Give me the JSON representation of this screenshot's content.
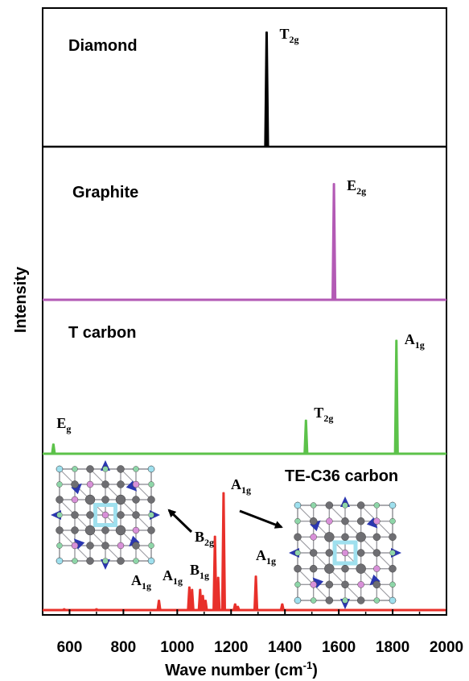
{
  "chart_data": {
    "type": "line",
    "xlabel": "Wave number (cm",
    "xlabel_sup": "-1",
    "xlabel_close": ")",
    "ylabel": "Intensity",
    "xlim": [
      500,
      2000
    ],
    "xticks": [
      600,
      800,
      1000,
      1200,
      1400,
      1600,
      1800,
      2000
    ],
    "panels": [
      {
        "label": "Diamond",
        "color": "#000000",
        "peaks": [
          {
            "x": 1332,
            "y": 1.0
          }
        ],
        "annotations": [
          {
            "text": "T",
            "sub": "2g",
            "x": 1332
          }
        ]
      },
      {
        "label": "Graphite",
        "color": "#b35ab5",
        "peaks": [
          {
            "x": 1582,
            "y": 1.0
          }
        ],
        "annotations": [
          {
            "text": "E",
            "sub": "2g",
            "x": 1582
          }
        ]
      },
      {
        "label": "T carbon",
        "color": "#5cc24a",
        "peaks": [
          {
            "x": 540,
            "y": 0.08
          },
          {
            "x": 1478,
            "y": 0.28
          },
          {
            "x": 1814,
            "y": 0.95
          }
        ],
        "annotations": [
          {
            "text": "E",
            "sub": "g",
            "x": 540
          },
          {
            "text": "T",
            "sub": "2g",
            "x": 1478
          },
          {
            "text": "A",
            "sub": "1g",
            "x": 1814
          }
        ]
      },
      {
        "label": "TE-C36 carbon",
        "color": "#e8302a",
        "peaks": [
          {
            "x": 580,
            "y": 0.01
          },
          {
            "x": 700,
            "y": 0.01
          },
          {
            "x": 932,
            "y": 0.08
          },
          {
            "x": 1045,
            "y": 0.19
          },
          {
            "x": 1055,
            "y": 0.17
          },
          {
            "x": 1085,
            "y": 0.17
          },
          {
            "x": 1095,
            "y": 0.12
          },
          {
            "x": 1105,
            "y": 0.08
          },
          {
            "x": 1140,
            "y": 0.61
          },
          {
            "x": 1152,
            "y": 0.27
          },
          {
            "x": 1172,
            "y": 0.97
          },
          {
            "x": 1215,
            "y": 0.05
          },
          {
            "x": 1225,
            "y": 0.03
          },
          {
            "x": 1292,
            "y": 0.28
          },
          {
            "x": 1390,
            "y": 0.05
          }
        ],
        "annotations": [
          {
            "text": "A",
            "sub": "1g",
            "x": 932
          },
          {
            "text": "A",
            "sub": "1g",
            "x": 1050
          },
          {
            "text": "B",
            "sub": "1g",
            "x": 1092
          },
          {
            "text": "A",
            "sub": "1g",
            "x": 1172
          },
          {
            "text": "A",
            "sub": "1g",
            "x": 1292
          },
          {
            "text": "B",
            "sub": "2g",
            "x": 1146
          }
        ]
      }
    ]
  },
  "colors": {
    "atom_gray": "#6e6e72",
    "atom_pink": "#d890d8",
    "atom_cyan": "#9fe0ee",
    "atom_blue": "#2a36b0",
    "atom_green": "#8ed6a8",
    "bond": "#9a9aa0"
  }
}
